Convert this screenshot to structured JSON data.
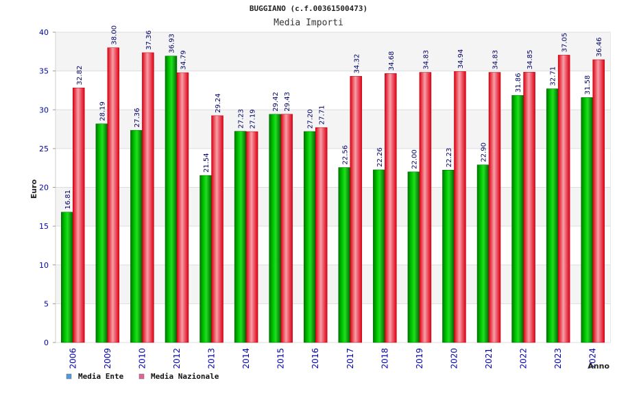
{
  "chart_data": {
    "type": "bar",
    "title": "BUGGIANO (c.f.00361500473)",
    "subtitle": "Media Importi",
    "xlabel": "Anno",
    "ylabel": "Euro",
    "ylim": [
      0,
      40
    ],
    "yticks": [
      "0",
      "5",
      "10",
      "15",
      "20",
      "25",
      "30",
      "35",
      "40"
    ],
    "categories": [
      "2006",
      "2009",
      "2010",
      "2012",
      "2013",
      "2014",
      "2015",
      "2016",
      "2017",
      "2018",
      "2019",
      "2020",
      "2021",
      "2022",
      "2023",
      "2024"
    ],
    "series": [
      {
        "name": "Media Ente",
        "color": "#00aa00",
        "values": [
          16.81,
          28.19,
          27.36,
          36.93,
          21.54,
          27.23,
          29.42,
          27.2,
          22.56,
          22.26,
          22.0,
          22.23,
          22.9,
          31.86,
          32.71,
          31.58
        ],
        "labels": [
          "16.81",
          "28.19",
          "27.36",
          "36.93",
          "21.54",
          "27.23",
          "29.42",
          "27.20",
          "22.56",
          "22.26",
          "22.00",
          "22.23",
          "22.90",
          "31.86",
          "32.71",
          "31.58"
        ]
      },
      {
        "name": "Media Nazionale",
        "color": "#ee1122",
        "values": [
          32.82,
          38.0,
          37.36,
          34.79,
          29.24,
          27.19,
          29.43,
          27.71,
          34.32,
          34.68,
          34.83,
          34.94,
          34.83,
          34.85,
          37.05,
          36.46
        ],
        "labels": [
          "32.82",
          "38.00",
          "37.36",
          "34.79",
          "29.24",
          "27.19",
          "29.43",
          "27.71",
          "34.32",
          "34.68",
          "34.83",
          "34.94",
          "34.83",
          "34.85",
          "37.05",
          "36.46"
        ]
      }
    ],
    "legend": [
      {
        "label": "Media Ente",
        "color": "#5599dd"
      },
      {
        "label": "Media Nazionale",
        "color": "#dd6699"
      }
    ],
    "grid": true,
    "legend_position": "bottom-left"
  }
}
